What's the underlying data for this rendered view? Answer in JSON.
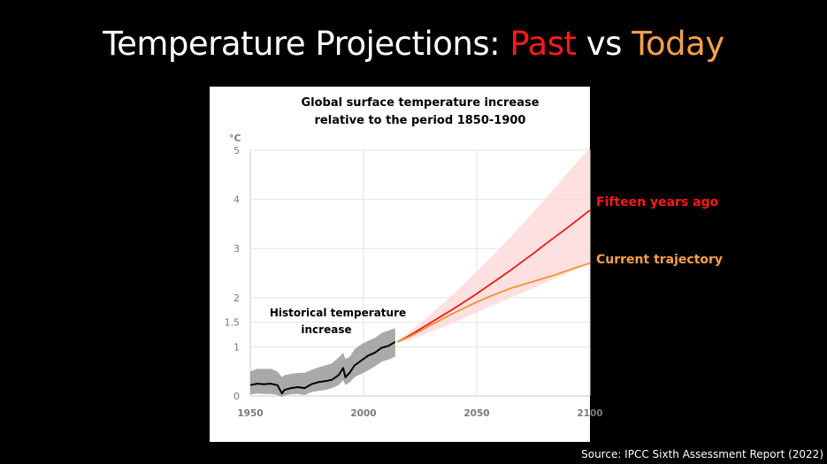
{
  "slide": {
    "title_prefix": "Temperature Projections: ",
    "title_past": "Past",
    "title_vs": " vs ",
    "title_today": "Today",
    "source": "Source: IPCC Sixth Assessment Report (2022)"
  },
  "chart_data": {
    "type": "line",
    "title_line1": "Global surface temperature increase",
    "title_line2": "relative to the period 1850-1900",
    "ylabel": "°C",
    "xlim": [
      1950,
      2100
    ],
    "ylim": [
      0,
      5
    ],
    "yticks": [
      {
        "value": 0,
        "label": "0"
      },
      {
        "value": 1,
        "label": "1"
      },
      {
        "value": 1.5,
        "label": "1.5"
      },
      {
        "value": 2,
        "label": "2"
      },
      {
        "value": 3,
        "label": "3"
      },
      {
        "value": 4,
        "label": "4"
      },
      {
        "value": 5,
        "label": "5"
      }
    ],
    "xticks": [
      {
        "value": 1950,
        "label": "1950"
      },
      {
        "value": 2000,
        "label": "2000"
      },
      {
        "value": 2050,
        "label": "2050"
      },
      {
        "value": 2100,
        "label": "2100"
      }
    ],
    "historical_label_line1": "Historical temperature",
    "historical_label_line2": "increase",
    "series": [
      {
        "name": "Historical temperature increase",
        "color": "#000000",
        "x": [
          1950,
          1953,
          1956,
          1959,
          1962,
          1964,
          1965,
          1968,
          1971,
          1974,
          1977,
          1980,
          1983,
          1986,
          1989,
          1991,
          1992,
          1994,
          1996,
          1999,
          2002,
          2005,
          2008,
          2011,
          2014
        ],
        "y": [
          0.22,
          0.25,
          0.24,
          0.25,
          0.22,
          0.05,
          0.12,
          0.16,
          0.18,
          0.16,
          0.24,
          0.28,
          0.3,
          0.33,
          0.42,
          0.57,
          0.38,
          0.48,
          0.62,
          0.72,
          0.82,
          0.88,
          0.98,
          1.02,
          1.1
        ],
        "band_upper": [
          0.5,
          0.55,
          0.55,
          0.55,
          0.5,
          0.38,
          0.42,
          0.45,
          0.47,
          0.47,
          0.53,
          0.58,
          0.62,
          0.66,
          0.78,
          0.88,
          0.75,
          0.8,
          0.95,
          1.05,
          1.12,
          1.18,
          1.28,
          1.33,
          1.38
        ],
        "band_lower": [
          0.03,
          0.05,
          0.04,
          0.04,
          0.02,
          -0.02,
          0.01,
          0.03,
          0.04,
          0.02,
          0.08,
          0.1,
          0.12,
          0.16,
          0.22,
          0.32,
          0.22,
          0.28,
          0.38,
          0.45,
          0.52,
          0.6,
          0.7,
          0.74,
          0.8
        ]
      },
      {
        "name": "Fifteen years ago",
        "color": "#e8191c",
        "x": [
          2015,
          2020,
          2025,
          2030,
          2035,
          2040,
          2045,
          2050,
          2055,
          2060,
          2065,
          2070,
          2075,
          2080,
          2085,
          2090,
          2095,
          2100
        ],
        "y": [
          1.1,
          1.22,
          1.36,
          1.5,
          1.64,
          1.78,
          1.93,
          2.08,
          2.24,
          2.4,
          2.56,
          2.73,
          2.9,
          3.08,
          3.25,
          3.42,
          3.6,
          3.78
        ],
        "band_upper": [
          1.12,
          1.3,
          1.48,
          1.68,
          1.88,
          2.09,
          2.31,
          2.53,
          2.76,
          3.0,
          3.24,
          3.49,
          3.74,
          4.0,
          4.26,
          4.53,
          4.8,
          5.05
        ],
        "band_lower": [
          1.08,
          1.14,
          1.22,
          1.31,
          1.4,
          1.5,
          1.6,
          1.7,
          1.8,
          1.9,
          2.0,
          2.1,
          2.2,
          2.3,
          2.4,
          2.5,
          2.6,
          2.7
        ]
      },
      {
        "name": "Current trajectory",
        "color": "#f0922e",
        "x": [
          2015,
          2020,
          2025,
          2030,
          2035,
          2040,
          2045,
          2050,
          2055,
          2060,
          2065,
          2070,
          2075,
          2080,
          2085,
          2090,
          2095,
          2100
        ],
        "y": [
          1.1,
          1.2,
          1.32,
          1.45,
          1.57,
          1.69,
          1.8,
          1.91,
          2.01,
          2.1,
          2.19,
          2.26,
          2.33,
          2.4,
          2.47,
          2.55,
          2.63,
          2.7
        ]
      }
    ],
    "legend": [
      "Fifteen years ago",
      "Current trajectory"
    ]
  }
}
